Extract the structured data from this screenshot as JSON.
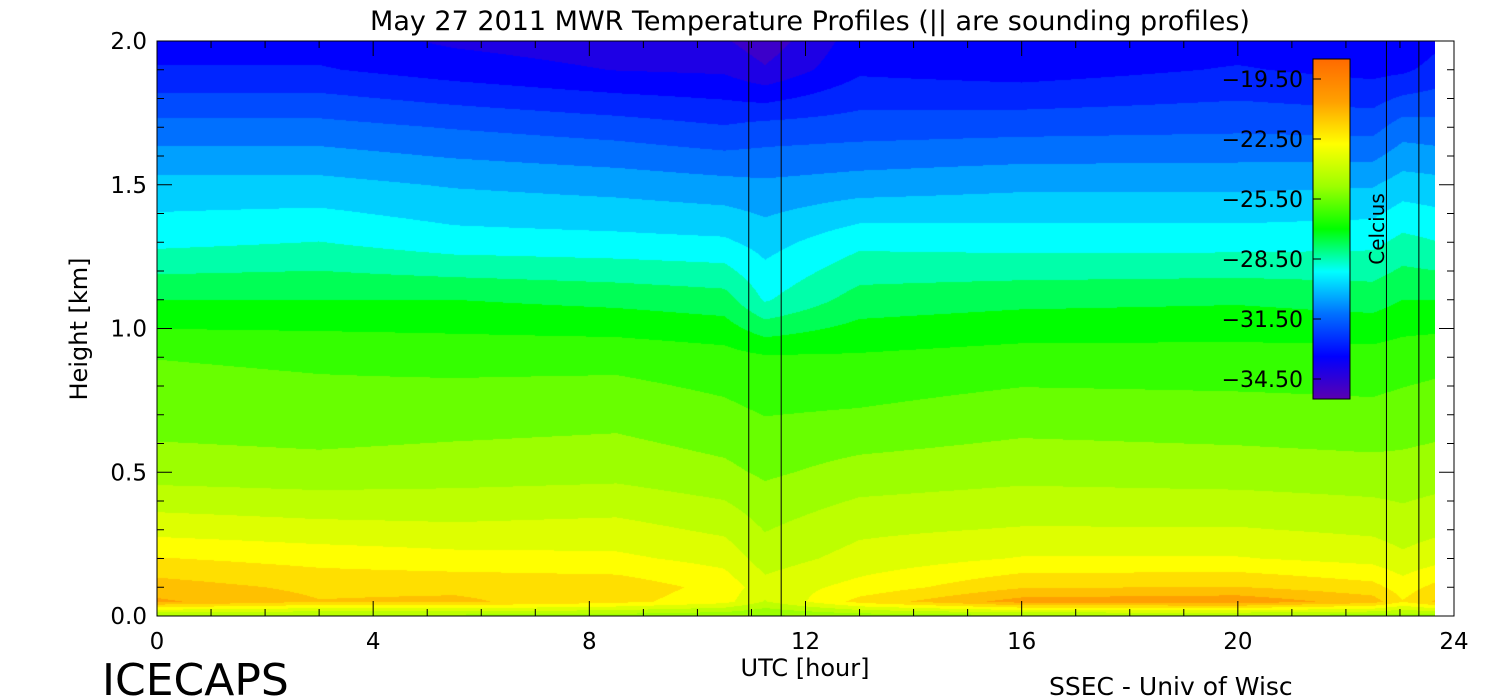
{
  "chart_data": {
    "type": "heatmap",
    "title": "May 27 2011 MWR Temperature Profiles (|| are sounding profiles)",
    "xlabel": "UTC [hour]",
    "ylabel": "Height [km]",
    "xlim": [
      0,
      24
    ],
    "ylim": [
      0,
      2.0
    ],
    "xticks": [
      0,
      4,
      8,
      12,
      16,
      20,
      24
    ],
    "xtick_labels": [
      "0",
      "4",
      "8",
      "12",
      "16",
      "20",
      "24"
    ],
    "yticks": [
      0.0,
      0.5,
      1.0,
      1.5,
      2.0
    ],
    "ytick_labels": [
      "0.0",
      "0.5",
      "1.0",
      "1.5",
      "2.0"
    ],
    "data_xmax": 23.7,
    "colorbar": {
      "label": "Celcius",
      "ticks": [
        -19.5,
        -22.5,
        -25.5,
        -28.5,
        -31.5,
        -34.5
      ],
      "tick_labels": [
        "-19.50",
        "-22.50",
        "-25.50",
        "-28.50",
        "-31.50",
        "-34.50"
      ],
      "range": [
        -35.5,
        -18.5
      ],
      "colors": [
        "#5a00b0",
        "#0000ff",
        "#0070ff",
        "#00ffff",
        "#00ff00",
        "#9cff00",
        "#ffff00",
        "#ffa000",
        "#ff6a00"
      ]
    },
    "soundings": [
      {
        "start": 10.95,
        "end": 11.55
      },
      {
        "start": 22.75,
        "end": 23.35
      }
    ],
    "heights_km": [
      0.0,
      0.05,
      0.1,
      0.2,
      0.3,
      0.5,
      0.7,
      0.9,
      1.1,
      1.3,
      1.5,
      1.7,
      1.9,
      2.0
    ],
    "profile_times": [
      0,
      3,
      5.5,
      8.5,
      10.5,
      11.25,
      13,
      16,
      20,
      22.5,
      23.05,
      23.7
    ],
    "profiles": [
      [
        -24.5,
        -20.5,
        -21.0,
        -22.0,
        -23.0,
        -24.5,
        -25.2,
        -25.6,
        -27.0,
        -28.6,
        -29.6,
        -31.0,
        -32.6,
        -33.0
      ],
      [
        -24.5,
        -21.3,
        -21.5,
        -22.3,
        -23.2,
        -24.6,
        -25.3,
        -25.7,
        -27.0,
        -28.4,
        -29.6,
        -31.0,
        -32.6,
        -33.0
      ],
      [
        -24.5,
        -21.2,
        -21.5,
        -22.5,
        -23.3,
        -24.5,
        -25.2,
        -25.8,
        -27.0,
        -28.8,
        -29.9,
        -31.3,
        -33.0,
        -33.5
      ],
      [
        -24.6,
        -21.8,
        -21.6,
        -22.6,
        -23.2,
        -24.4,
        -25.1,
        -25.8,
        -27.2,
        -28.9,
        -30.1,
        -31.6,
        -33.4,
        -33.8
      ],
      [
        -24.8,
        -22.5,
        -22.3,
        -23.0,
        -23.6,
        -24.7,
        -25.4,
        -26.0,
        -27.4,
        -29.0,
        -30.3,
        -31.9,
        -33.5,
        -34.0
      ],
      [
        -25.0,
        -23.5,
        -23.2,
        -23.8,
        -24.2,
        -25.0,
        -25.6,
        -26.2,
        -28.5,
        -29.4,
        -30.4,
        -31.7,
        -34.0,
        -34.5
      ],
      [
        -24.7,
        -21.8,
        -22.5,
        -23.2,
        -23.6,
        -24.6,
        -25.5,
        -26.2,
        -27.4,
        -28.6,
        -30.2,
        -31.6,
        -32.8,
        -33.0
      ],
      [
        -24.5,
        -20.3,
        -21.4,
        -22.7,
        -23.4,
        -24.4,
        -25.2,
        -26.0,
        -27.2,
        -28.7,
        -30.0,
        -31.5,
        -33.0,
        -33.3
      ],
      [
        -24.5,
        -20.1,
        -21.3,
        -22.7,
        -23.4,
        -24.5,
        -25.3,
        -26.0,
        -27.1,
        -28.7,
        -30.0,
        -31.4,
        -32.6,
        -33.0
      ],
      [
        -24.6,
        -21.0,
        -21.8,
        -23.0,
        -23.6,
        -24.6,
        -25.4,
        -26.0,
        -27.3,
        -28.6,
        -29.9,
        -31.5,
        -32.9,
        -33.2
      ],
      [
        -24.6,
        -22.0,
        -22.4,
        -23.3,
        -23.8,
        -24.6,
        -25.3,
        -25.9,
        -27.0,
        -28.2,
        -29.5,
        -30.9,
        -32.8,
        -33.3
      ],
      [
        -24.5,
        -21.2,
        -21.8,
        -23.0,
        -23.6,
        -24.5,
        -25.2,
        -25.8,
        -27.0,
        -28.4,
        -29.6,
        -31.0,
        -32.4,
        -32.8
      ]
    ]
  },
  "footer": {
    "left_label": "ICECAPS",
    "right_label": "SSEC - Univ of Wisc"
  }
}
